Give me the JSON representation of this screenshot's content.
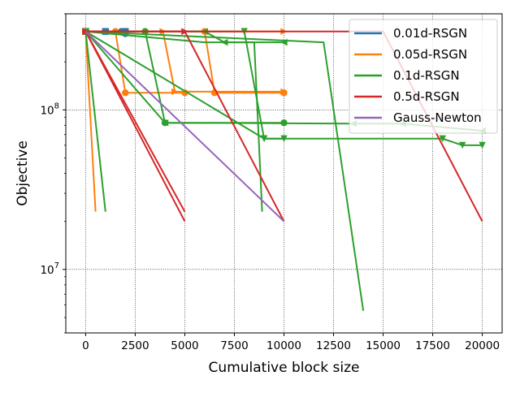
{
  "chart_data": {
    "type": "line",
    "xlabel": "Cumulative block size",
    "ylabel": "Objective",
    "xlim": [
      -1000,
      21000
    ],
    "ylim": [
      4000000,
      400000000
    ],
    "yscale": "log",
    "grid": true,
    "legend_position": "top-right",
    "x_ticks": [
      {
        "value": 0,
        "label": "0"
      },
      {
        "value": 2500,
        "label": "2500"
      },
      {
        "value": 5000,
        "label": "5000"
      },
      {
        "value": 7500,
        "label": "7500"
      },
      {
        "value": 10000,
        "label": "10000"
      },
      {
        "value": 12500,
        "label": "12500"
      },
      {
        "value": 15000,
        "label": "15000"
      },
      {
        "value": 17500,
        "label": "17500"
      },
      {
        "value": 20000,
        "label": "20000"
      }
    ],
    "y_ticks": [
      {
        "value": 10000000,
        "base": "10",
        "exp": "7"
      },
      {
        "value": 100000000,
        "base": "10",
        "exp": "8"
      }
    ],
    "legend": [
      {
        "name": "0.01d-RSGN",
        "color": "#1f77b4"
      },
      {
        "name": "0.05d-RSGN",
        "color": "#ff7f0e"
      },
      {
        "name": "0.1d-RSGN",
        "color": "#2ca02c"
      },
      {
        "name": "0.5d-RSGN",
        "color": "#d62728"
      },
      {
        "name": "Gauss-Newton",
        "color": "#9467bd"
      }
    ],
    "series": [
      {
        "group": "0.01d-RSGN",
        "color": "#1f77b4",
        "marker": "square",
        "points": [
          [
            0,
            310000000
          ],
          [
            1000,
            310000000
          ]
        ]
      },
      {
        "group": "0.01d-RSGN",
        "color": "#1f77b4",
        "marker": "circle",
        "points": [
          [
            0,
            310000000
          ],
          [
            1800,
            310000000
          ],
          [
            2000,
            300000000
          ]
        ]
      },
      {
        "group": "0.01d-RSGN",
        "color": "#1f77b4",
        "marker": "square",
        "points": [
          [
            0,
            310000000
          ],
          [
            2000,
            310000000
          ]
        ]
      },
      {
        "group": "0.05d-RSGN",
        "color": "#ff7f0e",
        "marker": "none",
        "points": [
          [
            0,
            310000000
          ],
          [
            500,
            23000000
          ]
        ]
      },
      {
        "group": "0.05d-RSGN",
        "color": "#ff7f0e",
        "marker": "circle",
        "points": [
          [
            0,
            310000000
          ],
          [
            1500,
            310000000
          ],
          [
            2000,
            128000000
          ],
          [
            5000,
            128000000
          ]
        ]
      },
      {
        "group": "0.05d-RSGN",
        "color": "#ff7f0e",
        "marker": "right-triangle",
        "points": [
          [
            0,
            310000000
          ],
          [
            3900,
            310000000
          ],
          [
            4500,
            130000000
          ],
          [
            10000,
            130000000
          ]
        ]
      },
      {
        "group": "0.05d-RSGN",
        "color": "#ff7f0e",
        "marker": "right-triangle",
        "points": [
          [
            0,
            310000000
          ],
          [
            10000,
            310000000
          ]
        ]
      },
      {
        "group": "0.05d-RSGN",
        "color": "#ff7f0e",
        "marker": "circle",
        "points": [
          [
            0,
            310000000
          ],
          [
            6000,
            310000000
          ],
          [
            6500,
            128000000
          ],
          [
            10000,
            128000000
          ]
        ]
      },
      {
        "group": "0.1d-RSGN",
        "color": "#2ca02c",
        "marker": "none",
        "points": [
          [
            0,
            310000000
          ],
          [
            1000,
            23000000
          ]
        ]
      },
      {
        "group": "0.1d-RSGN",
        "color": "#2ca02c",
        "marker": "circle",
        "points": [
          [
            0,
            310000000
          ],
          [
            3000,
            310000000
          ],
          [
            4000,
            83000000
          ],
          [
            10000,
            83000000
          ]
        ]
      },
      {
        "group": "0.1d-RSGN",
        "color": "#2ca02c",
        "marker": "left-triangle",
        "points": [
          [
            0,
            310000000
          ],
          [
            6000,
            310000000
          ],
          [
            7000,
            265000000
          ],
          [
            10000,
            265000000
          ]
        ]
      },
      {
        "group": "0.1d-RSGN",
        "color": "#2ca02c",
        "marker": "down-triangle",
        "points": [
          [
            0,
            310000000
          ],
          [
            8000,
            310000000
          ],
          [
            9000,
            66000000
          ],
          [
            10000,
            66000000
          ]
        ]
      },
      {
        "group": "0.1d-RSGN",
        "color": "#2ca02c",
        "marker": "none",
        "points": [
          [
            0,
            310000000
          ],
          [
            6000,
            265000000
          ],
          [
            8500,
            265000000
          ],
          [
            8900,
            23000000
          ]
        ]
      },
      {
        "group": "0.1d-RSGN",
        "color": "#2ca02c",
        "marker": "none",
        "points": [
          [
            0,
            310000000
          ],
          [
            12000,
            265000000
          ],
          [
            14000,
            5500000
          ]
        ]
      },
      {
        "group": "0.1d-RSGN",
        "color": "#2ca02c",
        "marker": "down-triangle",
        "points": [
          [
            0,
            310000000
          ],
          [
            9000,
            66000000
          ],
          [
            18000,
            66000000
          ],
          [
            19000,
            60000000
          ],
          [
            20000,
            60000000
          ]
        ]
      },
      {
        "group": "0.1d-RSGN",
        "color": "#2ca02c",
        "marker": "left-triangle",
        "points": [
          [
            0,
            310000000
          ],
          [
            4000,
            83000000
          ],
          [
            13500,
            82000000
          ],
          [
            16000,
            82000000
          ],
          [
            20000,
            74000000
          ]
        ]
      },
      {
        "group": "0.5d-RSGN",
        "color": "#d62728",
        "marker": "none",
        "points": [
          [
            0,
            310000000
          ],
          [
            5000,
            20000000
          ]
        ]
      },
      {
        "group": "0.5d-RSGN",
        "color": "#d62728",
        "marker": "none",
        "points": [
          [
            0,
            310000000
          ],
          [
            5000,
            23000000
          ]
        ]
      },
      {
        "group": "0.5d-RSGN",
        "color": "#d62728",
        "marker": "right-triangle",
        "points": [
          [
            0,
            310000000
          ],
          [
            5000,
            310000000
          ]
        ]
      },
      {
        "group": "0.5d-RSGN",
        "color": "#d62728",
        "marker": "none",
        "points": [
          [
            0,
            310000000
          ],
          [
            5000,
            310000000
          ],
          [
            10000,
            20000000
          ]
        ]
      },
      {
        "group": "0.5d-RSGN",
        "color": "#d62728",
        "marker": "none",
        "points": [
          [
            0,
            310000000
          ],
          [
            15000,
            310000000
          ],
          [
            20000,
            20000000
          ]
        ]
      },
      {
        "group": "Gauss-Newton",
        "color": "#9467bd",
        "marker": "none",
        "points": [
          [
            0,
            310000000
          ],
          [
            10000,
            20000000
          ]
        ]
      }
    ]
  }
}
